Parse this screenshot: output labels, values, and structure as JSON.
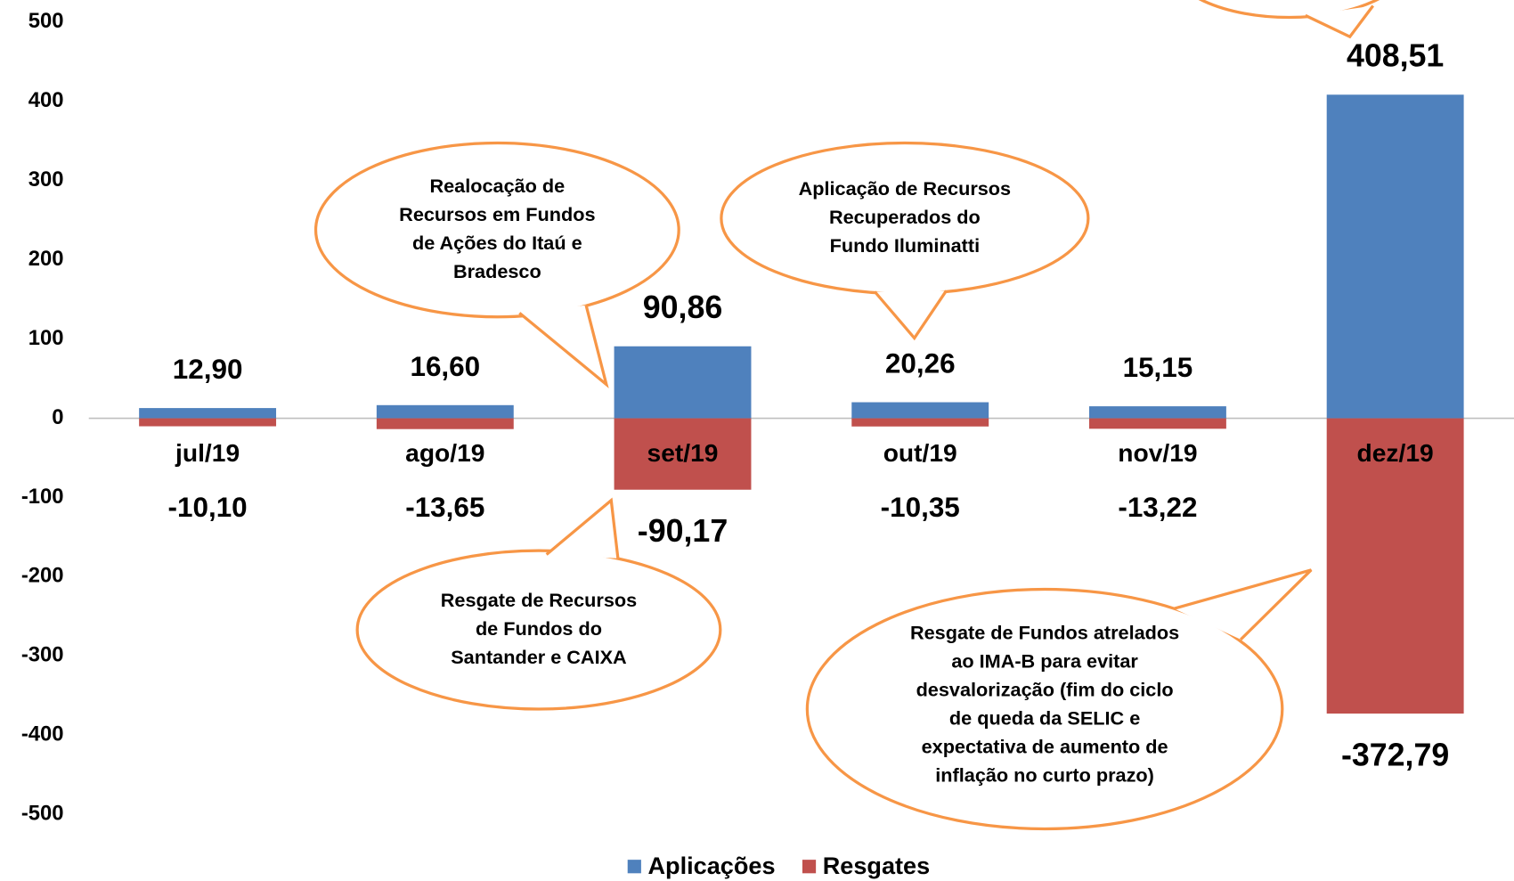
{
  "chart_data": {
    "type": "bar",
    "categories": [
      "jul/19",
      "ago/19",
      "set/19",
      "out/19",
      "nov/19",
      "dez/19"
    ],
    "series": [
      {
        "name": "Aplicações",
        "color": "#4f81bd",
        "values": [
          12.9,
          16.6,
          90.86,
          20.26,
          15.15,
          408.51
        ],
        "value_labels": [
          "12,90",
          "16,60",
          "90,86",
          "20,26",
          "15,15",
          "408,51"
        ]
      },
      {
        "name": "Resgates",
        "color": "#c0504d",
        "values": [
          -10.1,
          -13.65,
          -90.17,
          -10.35,
          -13.22,
          -372.79
        ],
        "value_labels": [
          "-10,10",
          "-13,65",
          "-90,17",
          "-10,35",
          "-13,22",
          "-372,79"
        ]
      }
    ],
    "ylim": [
      -500,
      500
    ],
    "yticks": [
      -500,
      -400,
      -300,
      -200,
      -100,
      0,
      100,
      200,
      300,
      400,
      500
    ],
    "legend": "bottom",
    "annotations": [
      [
        "Realocação de",
        "Recursos em Fundos",
        "de Ações do Itaú e",
        "Bradesco"
      ],
      [
        "Aplicação de Recursos",
        "Recuperados do",
        "Fundo Iluminatti"
      ],
      [
        "Resgate de Recursos",
        "de Fundos do",
        "Santander e CAIXA"
      ],
      [
        "Resgate de Fundos atrelados",
        "ao IMA-B para evitar",
        "desvalorização (fim do ciclo",
        "de queda da SELIC e",
        "expectativa de aumento de",
        "inflação no curto prazo)"
      ]
    ]
  }
}
